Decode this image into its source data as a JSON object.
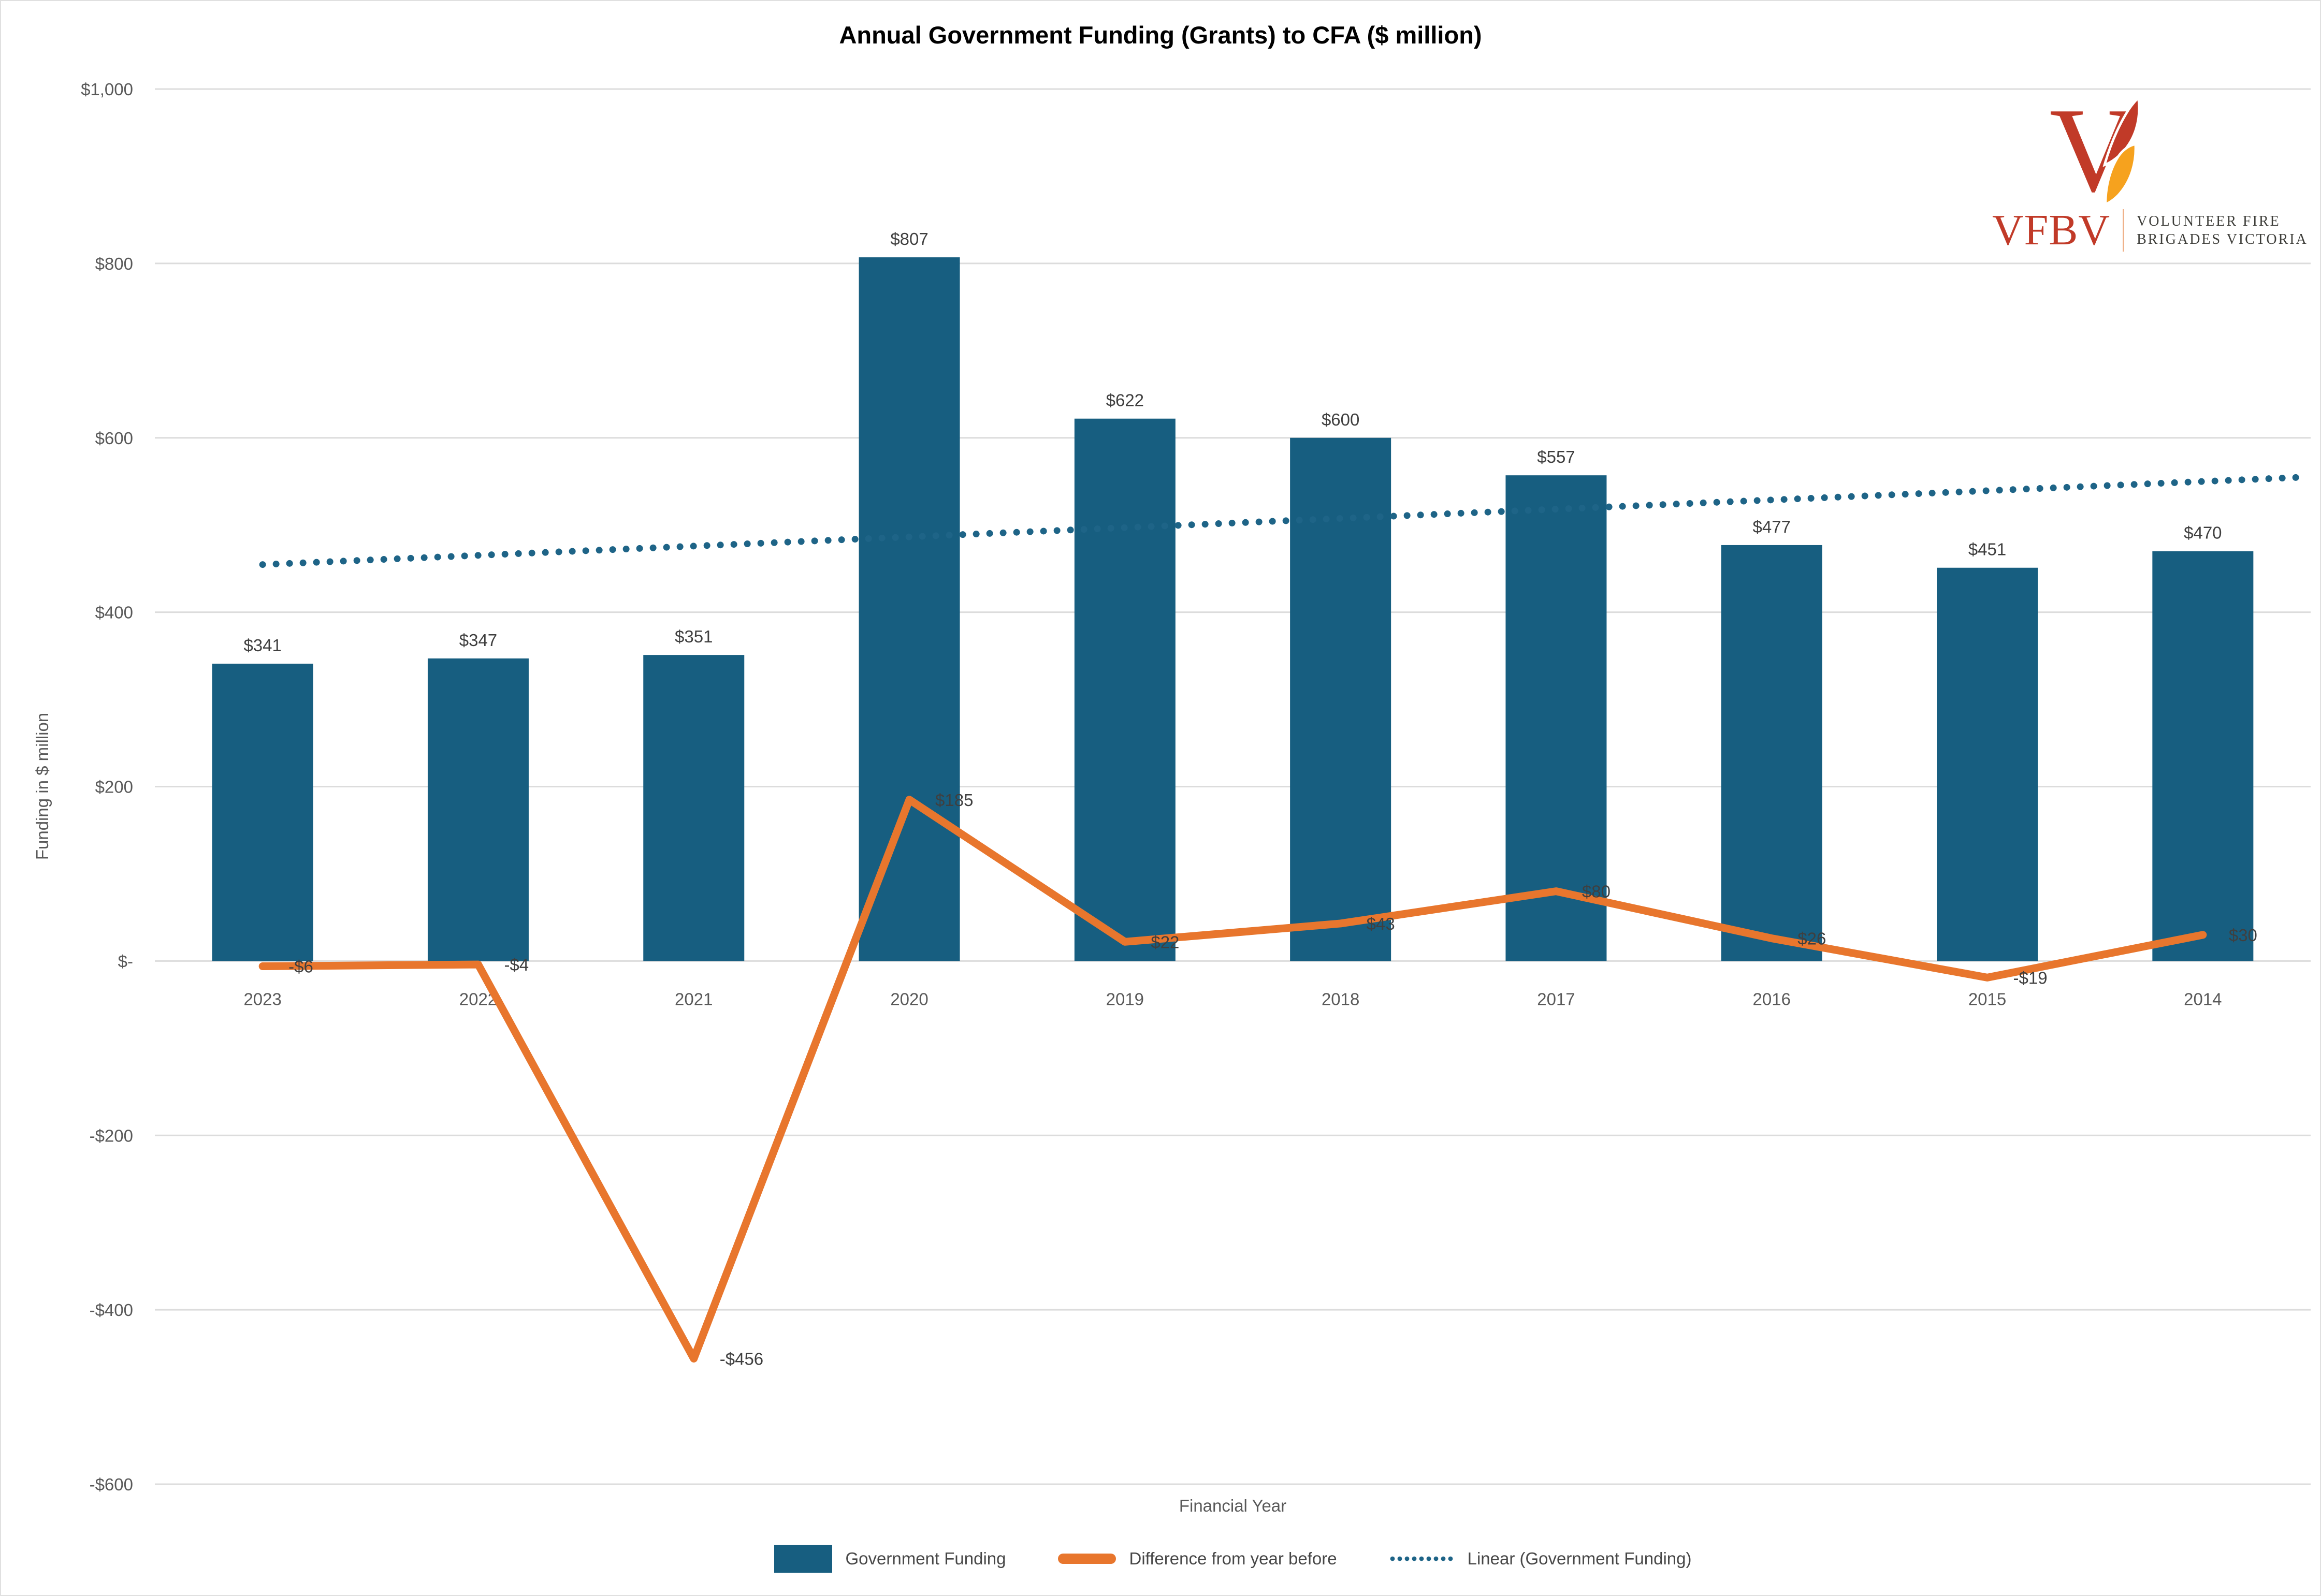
{
  "title": "Annual Government Funding (Grants) to CFA ($ million)",
  "logo": {
    "abbr": "VFBV",
    "org_line1": "VOLUNTEER FIRE",
    "org_line2": "BRIGADES VICTORIA"
  },
  "y_axis": {
    "title": "Funding in $ million",
    "ticks": [
      {
        "value": 1000,
        "label": "$1,000"
      },
      {
        "value": 800,
        "label": "$800"
      },
      {
        "value": 600,
        "label": "$600"
      },
      {
        "value": 400,
        "label": "$400"
      },
      {
        "value": 200,
        "label": "$200"
      },
      {
        "value": 0,
        "label": "$-"
      },
      {
        "value": -200,
        "label": "-$200"
      },
      {
        "value": -400,
        "label": "-$400"
      },
      {
        "value": -600,
        "label": "-$600"
      }
    ]
  },
  "x_axis": {
    "title": "Financial Year"
  },
  "legend": {
    "items": [
      {
        "label": "Government Funding"
      },
      {
        "label": "Difference from year before"
      },
      {
        "label": "Linear (Government Funding)"
      }
    ]
  },
  "colors": {
    "bar": "#175E80",
    "line": "#E8762D",
    "trend": "#1E6487",
    "grid": "#DCDCDC",
    "tick_text": "#595959",
    "label_text": "#3F3F3F",
    "logo_red": "#C13A28",
    "logo_orange": "#F6A21E",
    "logo_text": "#3E3E3A"
  },
  "chart_data": {
    "type": "bar",
    "title": "Annual Government Funding (Grants) to CFA ($ million)",
    "categories": [
      "2023",
      "2022",
      "2021",
      "2020",
      "2019",
      "2018",
      "2017",
      "2016",
      "2015",
      "2014"
    ],
    "series": [
      {
        "name": "Government Funding",
        "type": "bar",
        "values": [
          341,
          347,
          351,
          807,
          622,
          600,
          557,
          477,
          451,
          470
        ],
        "labels": [
          "$341",
          "$347",
          "$351",
          "$807",
          "$622",
          "$600",
          "$557",
          "$477",
          "$451",
          "$470"
        ]
      },
      {
        "name": "Difference from year before",
        "type": "line",
        "values": [
          -6,
          -4,
          -456,
          185,
          22,
          43,
          80,
          26,
          -19,
          30
        ],
        "labels": [
          "-$6",
          "-$4",
          "-$456",
          "$185",
          "$22",
          "$43",
          "$80",
          "$26",
          "-$19",
          "$30"
        ]
      },
      {
        "name": "Linear (Government Funding)",
        "type": "linear_trendline_of_series_0"
      }
    ],
    "xlabel": "Financial Year",
    "ylabel": "Funding in $ million",
    "ylim": [
      -600,
      1000
    ],
    "grid": true,
    "legend_position": "bottom"
  }
}
